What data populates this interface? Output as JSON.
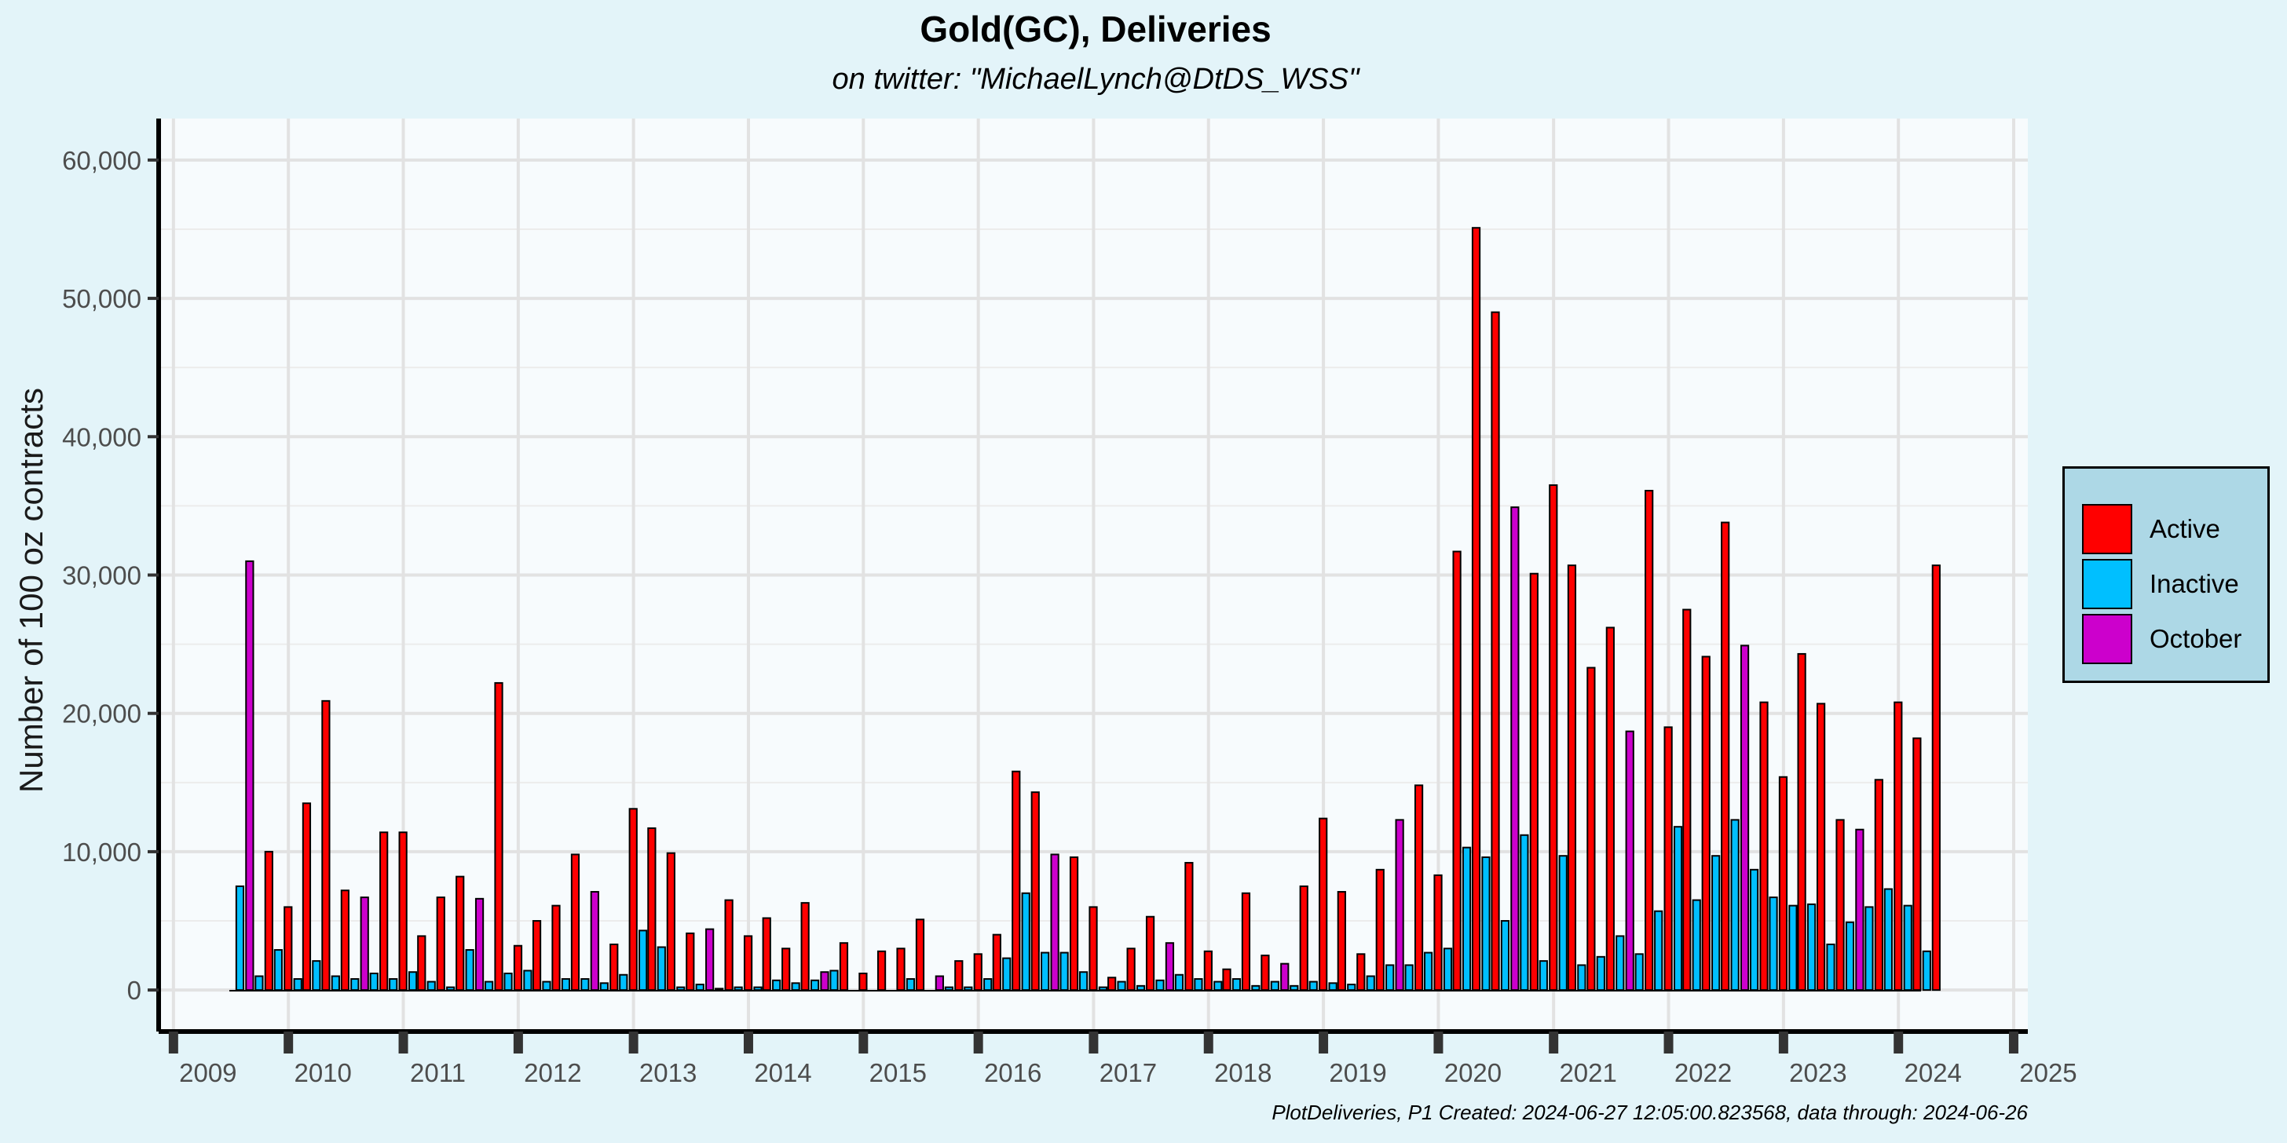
{
  "chart_data": {
    "type": "bar",
    "title": "Gold(GC), Deliveries",
    "subtitle": "on twitter:   \"MichaelLynch@DtDS_WSS\"",
    "ylabel": "Number of 100 oz contracts",
    "xlabel": "",
    "footer": "PlotDeliveries, P1 Created: 2024-06-27 12:05:00.823568, data through: 2024-06-26",
    "xlim": [
      "2008-11-15",
      "2025-02-15"
    ],
    "ylim": [
      -3000,
      63000
    ],
    "x_ticks": [
      "2009",
      "2010",
      "2011",
      "2012",
      "2013",
      "2014",
      "2015",
      "2016",
      "2017",
      "2018",
      "2019",
      "2020",
      "2021",
      "2022",
      "2023",
      "2024",
      "2025"
    ],
    "y_ticks": [
      "0",
      "10,000",
      "20,000",
      "30,000",
      "40,000",
      "50,000",
      "60,000"
    ],
    "grid": true,
    "legend_position": "right",
    "legend": [
      {
        "name": "Active",
        "color": "#ff0000"
      },
      {
        "name": "Inactive",
        "color": "#00bfff"
      },
      {
        "name": "October",
        "color": "#cc00cc"
      }
    ],
    "colors": {
      "Active": "#ff0000",
      "Inactive": "#00bfff",
      "October": "#cc00cc"
    },
    "bars": [
      {
        "date": "2009-07-31",
        "value": 7500,
        "type": "Inactive"
      },
      {
        "date": "2009-08-31",
        "value": 31000,
        "type": "October"
      },
      {
        "date": "2009-09-30",
        "value": 1000,
        "type": "Inactive"
      },
      {
        "date": "2009-10-31",
        "value": 10000,
        "type": "Active"
      },
      {
        "date": "2009-11-30",
        "value": 2900,
        "type": "Inactive"
      },
      {
        "date": "2009-12-31",
        "value": 6000,
        "type": "Active"
      },
      {
        "date": "2010-01-31",
        "value": 800,
        "type": "Inactive"
      },
      {
        "date": "2010-02-28",
        "value": 13500,
        "type": "Active"
      },
      {
        "date": "2010-03-31",
        "value": 2100,
        "type": "Inactive"
      },
      {
        "date": "2010-04-30",
        "value": 20900,
        "type": "Active"
      },
      {
        "date": "2010-05-31",
        "value": 1000,
        "type": "Inactive"
      },
      {
        "date": "2010-06-30",
        "value": 7200,
        "type": "Active"
      },
      {
        "date": "2010-07-31",
        "value": 800,
        "type": "Inactive"
      },
      {
        "date": "2010-08-31",
        "value": 6700,
        "type": "October"
      },
      {
        "date": "2010-09-30",
        "value": 1200,
        "type": "Inactive"
      },
      {
        "date": "2010-10-31",
        "value": 11400,
        "type": "Active"
      },
      {
        "date": "2010-11-30",
        "value": 800,
        "type": "Inactive"
      },
      {
        "date": "2010-12-31",
        "value": 11400,
        "type": "Active"
      },
      {
        "date": "2011-01-31",
        "value": 1300,
        "type": "Inactive"
      },
      {
        "date": "2011-02-28",
        "value": 3900,
        "type": "Active"
      },
      {
        "date": "2011-03-31",
        "value": 600,
        "type": "Inactive"
      },
      {
        "date": "2011-04-30",
        "value": 6700,
        "type": "Active"
      },
      {
        "date": "2011-05-31",
        "value": 200,
        "type": "Inactive"
      },
      {
        "date": "2011-06-30",
        "value": 8200,
        "type": "Active"
      },
      {
        "date": "2011-07-31",
        "value": 2900,
        "type": "Inactive"
      },
      {
        "date": "2011-08-31",
        "value": 6600,
        "type": "October"
      },
      {
        "date": "2011-09-30",
        "value": 600,
        "type": "Inactive"
      },
      {
        "date": "2011-10-31",
        "value": 22200,
        "type": "Active"
      },
      {
        "date": "2011-11-30",
        "value": 1200,
        "type": "Inactive"
      },
      {
        "date": "2011-12-31",
        "value": 3200,
        "type": "Active"
      },
      {
        "date": "2012-01-31",
        "value": 1400,
        "type": "Inactive"
      },
      {
        "date": "2012-02-29",
        "value": 5000,
        "type": "Active"
      },
      {
        "date": "2012-03-31",
        "value": 600,
        "type": "Inactive"
      },
      {
        "date": "2012-04-30",
        "value": 6100,
        "type": "Active"
      },
      {
        "date": "2012-05-31",
        "value": 800,
        "type": "Inactive"
      },
      {
        "date": "2012-06-30",
        "value": 9800,
        "type": "Active"
      },
      {
        "date": "2012-07-31",
        "value": 800,
        "type": "Inactive"
      },
      {
        "date": "2012-08-31",
        "value": 7100,
        "type": "October"
      },
      {
        "date": "2012-09-30",
        "value": 500,
        "type": "Inactive"
      },
      {
        "date": "2012-10-31",
        "value": 3300,
        "type": "Active"
      },
      {
        "date": "2012-11-30",
        "value": 1100,
        "type": "Inactive"
      },
      {
        "date": "2012-12-31",
        "value": 13100,
        "type": "Active"
      },
      {
        "date": "2013-01-31",
        "value": 4300,
        "type": "Inactive"
      },
      {
        "date": "2013-02-28",
        "value": 11700,
        "type": "Active"
      },
      {
        "date": "2013-03-31",
        "value": 3100,
        "type": "Inactive"
      },
      {
        "date": "2013-04-30",
        "value": 9900,
        "type": "Active"
      },
      {
        "date": "2013-05-31",
        "value": 200,
        "type": "Inactive"
      },
      {
        "date": "2013-06-30",
        "value": 4100,
        "type": "Active"
      },
      {
        "date": "2013-07-31",
        "value": 400,
        "type": "Inactive"
      },
      {
        "date": "2013-08-31",
        "value": 4400,
        "type": "October"
      },
      {
        "date": "2013-09-30",
        "value": 100,
        "type": "Inactive"
      },
      {
        "date": "2013-10-31",
        "value": 6500,
        "type": "Active"
      },
      {
        "date": "2013-11-30",
        "value": 200,
        "type": "Inactive"
      },
      {
        "date": "2013-12-31",
        "value": 3900,
        "type": "Active"
      },
      {
        "date": "2014-01-31",
        "value": 200,
        "type": "Inactive"
      },
      {
        "date": "2014-02-28",
        "value": 5200,
        "type": "Active"
      },
      {
        "date": "2014-03-31",
        "value": 700,
        "type": "Inactive"
      },
      {
        "date": "2014-04-30",
        "value": 3000,
        "type": "Active"
      },
      {
        "date": "2014-05-31",
        "value": 500,
        "type": "Inactive"
      },
      {
        "date": "2014-06-30",
        "value": 6300,
        "type": "Active"
      },
      {
        "date": "2014-07-31",
        "value": 700,
        "type": "Inactive"
      },
      {
        "date": "2014-08-31",
        "value": 1300,
        "type": "October"
      },
      {
        "date": "2014-09-30",
        "value": 1400,
        "type": "Inactive"
      },
      {
        "date": "2014-10-31",
        "value": 3400,
        "type": "Active"
      },
      {
        "date": "2014-12-31",
        "value": 1200,
        "type": "Active"
      },
      {
        "date": "2015-02-28",
        "value": 2800,
        "type": "Active"
      },
      {
        "date": "2015-04-30",
        "value": 3000,
        "type": "Active"
      },
      {
        "date": "2015-05-31",
        "value": 800,
        "type": "Inactive"
      },
      {
        "date": "2015-06-30",
        "value": 5100,
        "type": "Active"
      },
      {
        "date": "2015-08-31",
        "value": 1000,
        "type": "October"
      },
      {
        "date": "2015-09-30",
        "value": 200,
        "type": "Inactive"
      },
      {
        "date": "2015-10-31",
        "value": 2100,
        "type": "Active"
      },
      {
        "date": "2015-11-30",
        "value": 200,
        "type": "Inactive"
      },
      {
        "date": "2015-12-31",
        "value": 2600,
        "type": "Active"
      },
      {
        "date": "2016-01-31",
        "value": 800,
        "type": "Inactive"
      },
      {
        "date": "2016-02-29",
        "value": 4000,
        "type": "Active"
      },
      {
        "date": "2016-03-31",
        "value": 2300,
        "type": "Inactive"
      },
      {
        "date": "2016-04-30",
        "value": 15800,
        "type": "Active"
      },
      {
        "date": "2016-05-31",
        "value": 7000,
        "type": "Inactive"
      },
      {
        "date": "2016-06-30",
        "value": 14300,
        "type": "Active"
      },
      {
        "date": "2016-07-31",
        "value": 2700,
        "type": "Inactive"
      },
      {
        "date": "2016-08-31",
        "value": 9800,
        "type": "October"
      },
      {
        "date": "2016-09-30",
        "value": 2700,
        "type": "Inactive"
      },
      {
        "date": "2016-10-31",
        "value": 9600,
        "type": "Active"
      },
      {
        "date": "2016-11-30",
        "value": 1300,
        "type": "Inactive"
      },
      {
        "date": "2016-12-31",
        "value": 6000,
        "type": "Active"
      },
      {
        "date": "2017-01-31",
        "value": 200,
        "type": "Inactive"
      },
      {
        "date": "2017-02-28",
        "value": 900,
        "type": "Active"
      },
      {
        "date": "2017-03-31",
        "value": 600,
        "type": "Inactive"
      },
      {
        "date": "2017-04-30",
        "value": 3000,
        "type": "Active"
      },
      {
        "date": "2017-05-31",
        "value": 300,
        "type": "Inactive"
      },
      {
        "date": "2017-06-30",
        "value": 5300,
        "type": "Active"
      },
      {
        "date": "2017-07-31",
        "value": 700,
        "type": "Inactive"
      },
      {
        "date": "2017-08-31",
        "value": 3400,
        "type": "October"
      },
      {
        "date": "2017-09-30",
        "value": 1100,
        "type": "Inactive"
      },
      {
        "date": "2017-10-31",
        "value": 9200,
        "type": "Active"
      },
      {
        "date": "2017-11-30",
        "value": 800,
        "type": "Inactive"
      },
      {
        "date": "2017-12-31",
        "value": 2800,
        "type": "Active"
      },
      {
        "date": "2018-01-31",
        "value": 600,
        "type": "Inactive"
      },
      {
        "date": "2018-02-28",
        "value": 1500,
        "type": "Active"
      },
      {
        "date": "2018-03-31",
        "value": 800,
        "type": "Inactive"
      },
      {
        "date": "2018-04-30",
        "value": 7000,
        "type": "Active"
      },
      {
        "date": "2018-05-31",
        "value": 300,
        "type": "Inactive"
      },
      {
        "date": "2018-06-30",
        "value": 2500,
        "type": "Active"
      },
      {
        "date": "2018-07-31",
        "value": 600,
        "type": "Inactive"
      },
      {
        "date": "2018-08-31",
        "value": 1900,
        "type": "October"
      },
      {
        "date": "2018-09-30",
        "value": 300,
        "type": "Inactive"
      },
      {
        "date": "2018-10-31",
        "value": 7500,
        "type": "Active"
      },
      {
        "date": "2018-11-30",
        "value": 600,
        "type": "Inactive"
      },
      {
        "date": "2018-12-31",
        "value": 12400,
        "type": "Active"
      },
      {
        "date": "2019-01-31",
        "value": 500,
        "type": "Inactive"
      },
      {
        "date": "2019-02-28",
        "value": 7100,
        "type": "Active"
      },
      {
        "date": "2019-03-31",
        "value": 400,
        "type": "Inactive"
      },
      {
        "date": "2019-04-30",
        "value": 2600,
        "type": "Active"
      },
      {
        "date": "2019-05-31",
        "value": 1000,
        "type": "Inactive"
      },
      {
        "date": "2019-06-30",
        "value": 8700,
        "type": "Active"
      },
      {
        "date": "2019-07-31",
        "value": 1800,
        "type": "Inactive"
      },
      {
        "date": "2019-08-31",
        "value": 12300,
        "type": "October"
      },
      {
        "date": "2019-09-30",
        "value": 1800,
        "type": "Inactive"
      },
      {
        "date": "2019-10-31",
        "value": 14800,
        "type": "Active"
      },
      {
        "date": "2019-11-30",
        "value": 2700,
        "type": "Inactive"
      },
      {
        "date": "2019-12-31",
        "value": 8300,
        "type": "Active"
      },
      {
        "date": "2020-01-31",
        "value": 3000,
        "type": "Inactive"
      },
      {
        "date": "2020-02-29",
        "value": 31700,
        "type": "Active"
      },
      {
        "date": "2020-03-31",
        "value": 10300,
        "type": "Inactive"
      },
      {
        "date": "2020-04-30",
        "value": 55100,
        "type": "Active"
      },
      {
        "date": "2020-05-31",
        "value": 9600,
        "type": "Inactive"
      },
      {
        "date": "2020-06-30",
        "value": 49000,
        "type": "Active"
      },
      {
        "date": "2020-07-31",
        "value": 5000,
        "type": "Inactive"
      },
      {
        "date": "2020-08-31",
        "value": 34900,
        "type": "October"
      },
      {
        "date": "2020-09-30",
        "value": 11200,
        "type": "Inactive"
      },
      {
        "date": "2020-10-31",
        "value": 30100,
        "type": "Active"
      },
      {
        "date": "2020-11-30",
        "value": 2100,
        "type": "Inactive"
      },
      {
        "date": "2020-12-31",
        "value": 36500,
        "type": "Active"
      },
      {
        "date": "2021-01-31",
        "value": 9700,
        "type": "Inactive"
      },
      {
        "date": "2021-02-28",
        "value": 30700,
        "type": "Active"
      },
      {
        "date": "2021-03-31",
        "value": 1800,
        "type": "Inactive"
      },
      {
        "date": "2021-04-30",
        "value": 23300,
        "type": "Active"
      },
      {
        "date": "2021-05-31",
        "value": 2400,
        "type": "Inactive"
      },
      {
        "date": "2021-06-30",
        "value": 26200,
        "type": "Active"
      },
      {
        "date": "2021-07-31",
        "value": 3900,
        "type": "Inactive"
      },
      {
        "date": "2021-08-31",
        "value": 18700,
        "type": "October"
      },
      {
        "date": "2021-09-30",
        "value": 2600,
        "type": "Inactive"
      },
      {
        "date": "2021-10-31",
        "value": 36100,
        "type": "Active"
      },
      {
        "date": "2021-11-30",
        "value": 5700,
        "type": "Inactive"
      },
      {
        "date": "2021-12-31",
        "value": 19000,
        "type": "Active"
      },
      {
        "date": "2022-01-31",
        "value": 11800,
        "type": "Inactive"
      },
      {
        "date": "2022-02-28",
        "value": 27500,
        "type": "Active"
      },
      {
        "date": "2022-03-31",
        "value": 6500,
        "type": "Inactive"
      },
      {
        "date": "2022-04-30",
        "value": 24100,
        "type": "Active"
      },
      {
        "date": "2022-05-31",
        "value": 9700,
        "type": "Inactive"
      },
      {
        "date": "2022-06-30",
        "value": 33800,
        "type": "Active"
      },
      {
        "date": "2022-07-31",
        "value": 12300,
        "type": "Inactive"
      },
      {
        "date": "2022-08-31",
        "value": 24900,
        "type": "October"
      },
      {
        "date": "2022-09-30",
        "value": 8700,
        "type": "Inactive"
      },
      {
        "date": "2022-10-31",
        "value": 20800,
        "type": "Active"
      },
      {
        "date": "2022-11-30",
        "value": 6700,
        "type": "Inactive"
      },
      {
        "date": "2022-12-31",
        "value": 15400,
        "type": "Active"
      },
      {
        "date": "2023-01-31",
        "value": 6100,
        "type": "Inactive"
      },
      {
        "date": "2023-02-28",
        "value": 24300,
        "type": "Active"
      },
      {
        "date": "2023-03-31",
        "value": 6200,
        "type": "Inactive"
      },
      {
        "date": "2023-04-30",
        "value": 20700,
        "type": "Active"
      },
      {
        "date": "2023-05-31",
        "value": 3300,
        "type": "Inactive"
      },
      {
        "date": "2023-06-30",
        "value": 12300,
        "type": "Active"
      },
      {
        "date": "2023-07-31",
        "value": 4900,
        "type": "Inactive"
      },
      {
        "date": "2023-08-31",
        "value": 11600,
        "type": "October"
      },
      {
        "date": "2023-09-30",
        "value": 6000,
        "type": "Inactive"
      },
      {
        "date": "2023-10-31",
        "value": 15200,
        "type": "Active"
      },
      {
        "date": "2023-11-30",
        "value": 7300,
        "type": "Inactive"
      },
      {
        "date": "2023-12-31",
        "value": 20800,
        "type": "Active"
      },
      {
        "date": "2024-01-31",
        "value": 6100,
        "type": "Inactive"
      },
      {
        "date": "2024-02-29",
        "value": 18200,
        "type": "Active"
      },
      {
        "date": "2024-03-31",
        "value": 2800,
        "type": "Inactive"
      },
      {
        "date": "2024-04-30",
        "value": 30700,
        "type": "Active"
      }
    ]
  }
}
